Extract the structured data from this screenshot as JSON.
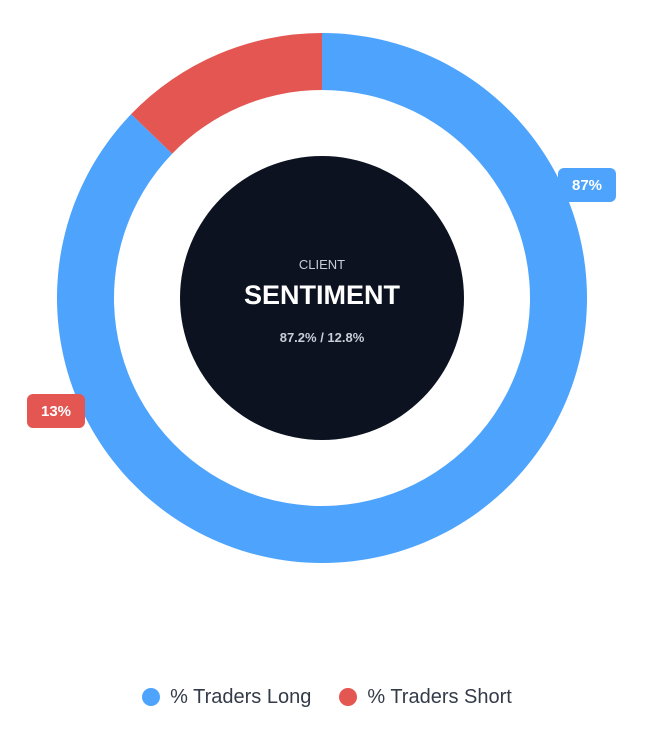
{
  "chart_data": {
    "type": "pie",
    "donut": true,
    "title": "",
    "center": {
      "kicker": "CLIENT",
      "title": "SENTIMENT",
      "subtitle": "87.2% / 12.8%"
    },
    "categories": [
      "% Traders Long",
      "% Traders Short"
    ],
    "values": [
      87.2,
      12.8
    ],
    "data_labels": [
      "87%",
      "13%"
    ],
    "colors": [
      "#4ea4fd",
      "#e45651"
    ],
    "center_color": "#0d1221",
    "legend_position": "bottom-center"
  }
}
